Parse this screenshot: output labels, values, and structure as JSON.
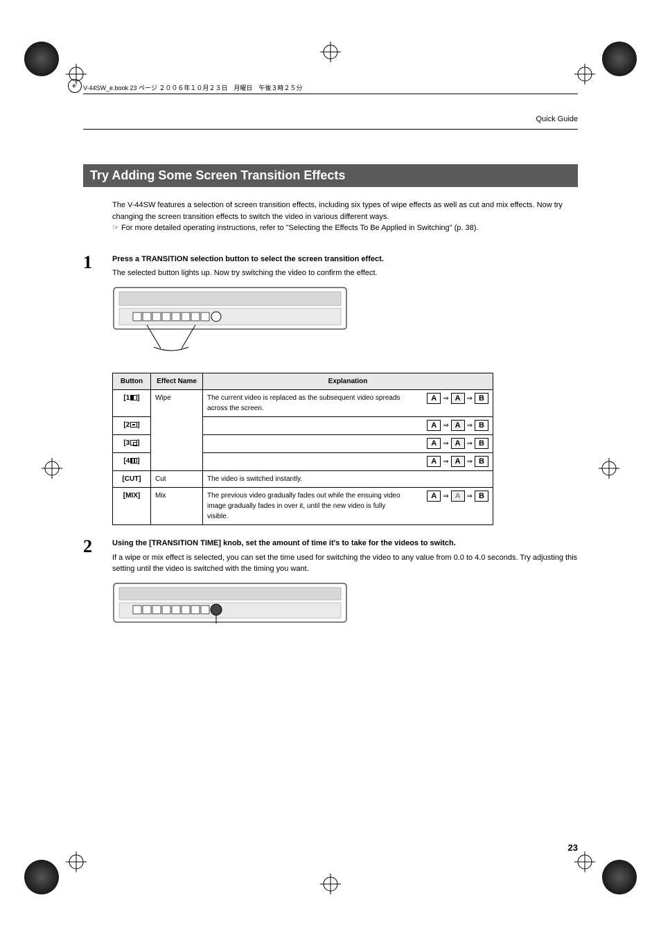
{
  "print_marks": {
    "corner_gradient_color_outer": "#000000",
    "corner_gradient_color_inner": "#555555"
  },
  "book_header": "V-44SW_e.book 23 ページ ２００６年１０月２３日　月曜日　午後３時２５分",
  "running_header": "Quick Guide",
  "section_title": "Try Adding Some Screen Transition Effects",
  "intro_line1": "The V-44SW features a selection of screen transition effects, including six types of wipe effects as well as cut and mix effects. Now try changing the screen transition effects to switch the video in various different ways.",
  "intro_ref_symbol": "☞",
  "intro_line2": "For more detailed operating instructions, refer to \"Selecting the Effects To Be Applied in Switching\" (p. 38).",
  "step1": {
    "num": "1",
    "heading": "Press a TRANSITION selection button to select the screen transition effect.",
    "body": "The selected button lights up. Now try switching the video to confirm the effect."
  },
  "table": {
    "headers": {
      "button": "Button",
      "effect": "Effect Name",
      "explanation": "Explanation"
    },
    "rows": [
      {
        "button": "[1",
        "icon": "i1",
        "close": "]",
        "effect": "Wipe",
        "explanation": "The current video is replaced as the subsequent video spreads across the screen.",
        "a": "A",
        "b": "B"
      },
      {
        "button": "[2",
        "icon": "i2",
        "close": "]",
        "effect": "",
        "explanation": "",
        "a": "A",
        "b": "B"
      },
      {
        "button": "[3",
        "icon": "i3",
        "close": "]",
        "effect": "",
        "explanation": "",
        "a": "A",
        "b": "B"
      },
      {
        "button": "[4",
        "icon": "i4",
        "close": "]",
        "effect": "",
        "explanation": "",
        "a": "A",
        "b": "B"
      },
      {
        "button": "[CUT]",
        "icon": "",
        "close": "",
        "effect": "Cut",
        "explanation": "The video is switched instantly.",
        "a": "",
        "b": ""
      },
      {
        "button": "[MIX]",
        "icon": "",
        "close": "",
        "effect": "Mix",
        "explanation": "The previous video gradually fades out while the ensuing video image gradually fades in over it, until the new video is fully visible.",
        "a": "A",
        "b": "B"
      }
    ]
  },
  "step2": {
    "num": "2",
    "heading": "Using the [TRANSITION TIME] knob, set the amount of time it's to take for the videos to switch.",
    "body": "If a wipe or mix effect is selected, you can set the time used for switching the video to any value from 0.0 to 4.0 seconds. Try adjusting this setting until the video is switched with the timing you want."
  },
  "page_number": "23",
  "colors": {
    "section_bg": "#5a5a5a",
    "section_fg": "#ffffff",
    "table_header_bg": "#e8e8e8",
    "border": "#000000"
  }
}
